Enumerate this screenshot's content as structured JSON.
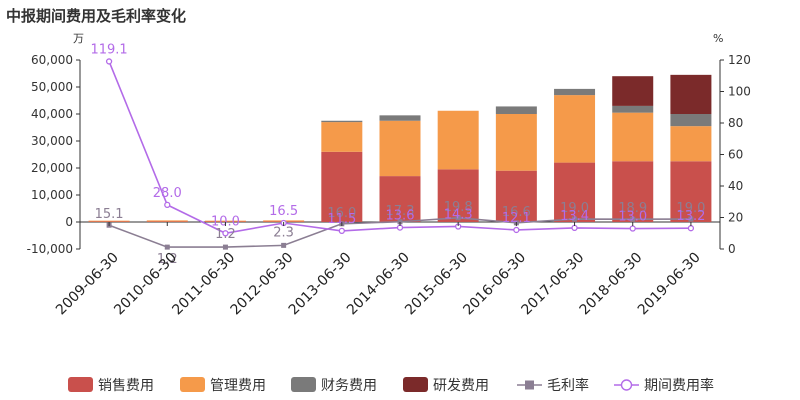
{
  "chart_data": {
    "type": "bar",
    "title": "中报期间费用及毛利率变化",
    "left_unit": "万",
    "right_unit": "%",
    "categories": [
      "2009-06-30",
      "2010-06-30",
      "2011-06-30",
      "2012-06-30",
      "2013-06-30",
      "2014-06-30",
      "2015-06-30",
      "2016-06-30",
      "2017-06-30",
      "2018-06-30",
      "2019-06-30"
    ],
    "ylim_left": [
      -10000,
      60000
    ],
    "yticks_left": [
      -10000,
      0,
      10000,
      20000,
      30000,
      40000,
      50000,
      60000
    ],
    "ytick_labels_left": [
      "-10,000",
      "0",
      "10,000",
      "20,000",
      "30,000",
      "40,000",
      "50,000",
      "60,000"
    ],
    "ylim_right": [
      0,
      120
    ],
    "yticks_right": [
      0,
      20,
      40,
      60,
      80,
      100,
      120
    ],
    "ytick_labels_right": [
      "0",
      "20",
      "40",
      "60",
      "80",
      "100",
      "120"
    ],
    "bar_series": [
      {
        "name": "销售费用",
        "color": "#c9504c",
        "values": [
          200,
          200,
          200,
          200,
          26000,
          17000,
          19500,
          19000,
          22000,
          22500,
          22500
        ]
      },
      {
        "name": "管理费用",
        "color": "#f59a4a",
        "values": [
          300,
          400,
          300,
          400,
          11000,
          20500,
          21700,
          21000,
          25000,
          18000,
          13000
        ]
      },
      {
        "name": "财务费用",
        "color": "#7a7a7a",
        "values": [
          0,
          0,
          0,
          0,
          500,
          2000,
          0,
          2800,
          2300,
          2500,
          4500
        ]
      },
      {
        "name": "研发费用",
        "color": "#7b2a2a",
        "values": [
          0,
          0,
          0,
          0,
          0,
          0,
          0,
          0,
          0,
          11000,
          14500
        ]
      }
    ],
    "line_series": [
      {
        "name": "毛利率",
        "color": "#8b7e93",
        "marker": "square",
        "values": [
          15.1,
          1.2,
          1.2,
          2.3,
          16.0,
          17.3,
          19.8,
          16.6,
          19.0,
          18.9,
          19.0
        ],
        "labels": [
          "15.1",
          "1.2",
          "1.2",
          "2.3",
          "16.0",
          "17.3",
          "19.8",
          "16.6",
          "19.0",
          "18.9",
          "19.0"
        ]
      },
      {
        "name": "期间费用率",
        "color": "#b36be8",
        "marker": "circle",
        "values": [
          119.1,
          28.0,
          10.0,
          16.5,
          11.5,
          13.6,
          14.3,
          12.1,
          13.4,
          13.0,
          13.2
        ],
        "labels": [
          "119.1",
          "28.0",
          "10.0",
          "16.5",
          "11.5",
          "13.6",
          "14.3",
          "12.1",
          "13.4",
          "13.0",
          "13.2"
        ]
      }
    ],
    "legend": {
      "position": "bottom"
    },
    "grid": false
  }
}
